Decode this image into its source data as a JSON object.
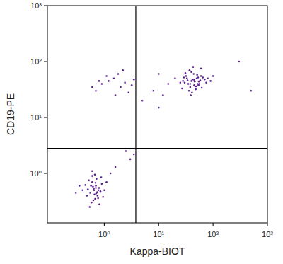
{
  "chart_data": {
    "type": "scatter",
    "x_label": "Kappa-BIOT",
    "y_label": "CD19-PE",
    "log": true,
    "color": "#5a1f8c",
    "marker": "dot",
    "xlim": [
      0.09,
      1000
    ],
    "ylim": [
      0.13,
      1000
    ],
    "xticks": [
      {
        "value": 1,
        "label": "10⁰"
      },
      {
        "value": 10,
        "label": "10¹"
      },
      {
        "value": 100,
        "label": "10²"
      },
      {
        "value": 1000,
        "label": "10³"
      }
    ],
    "yticks": [
      {
        "value": 1,
        "label": "10⁰"
      },
      {
        "value": 10,
        "label": "10¹"
      },
      {
        "value": 100,
        "label": "10²"
      },
      {
        "value": 1000,
        "label": "10³"
      }
    ],
    "quadrant_x": 3.8,
    "quadrant_y": 2.8,
    "series": [
      {
        "x": [
          0.65,
          0.7,
          0.55,
          0.8,
          0.6,
          0.75,
          0.5,
          0.68,
          0.9,
          0.62,
          0.58,
          0.72,
          0.85,
          0.45,
          0.66,
          0.78,
          0.52,
          0.95,
          0.6,
          0.7,
          0.4,
          1.1,
          0.63,
          0.74,
          0.57,
          0.81,
          0.69,
          0.48,
          0.88,
          0.64,
          0.35,
          1.3,
          0.71,
          0.6,
          0.77,
          0.54,
          1.0,
          0.67,
          0.3,
          1.6
        ],
        "values": [
          0.5,
          0.6,
          0.45,
          0.55,
          0.7,
          0.4,
          0.52,
          0.35,
          0.65,
          0.58,
          0.3,
          0.8,
          0.48,
          0.62,
          0.42,
          0.5,
          0.75,
          0.38,
          0.9,
          0.55,
          0.5,
          0.7,
          0.33,
          0.46,
          0.6,
          0.28,
          0.68,
          0.4,
          0.85,
          0.53,
          0.6,
          1.0,
          0.44,
          1.1,
          0.36,
          0.25,
          0.5,
          0.95,
          0.45,
          1.3
        ]
      },
      {
        "x": [
          40,
          35,
          50,
          45,
          30,
          60,
          38,
          42,
          55,
          33,
          48,
          70,
          28,
          44,
          36,
          52,
          65,
          40,
          25,
          47,
          58,
          32,
          80,
          41,
          37,
          54,
          46,
          62,
          29,
          43,
          90,
          39,
          51,
          34,
          56,
          20,
          75,
          49,
          31,
          45,
          100,
          27,
          60,
          38,
          53
        ],
        "values": [
          45,
          40,
          50,
          38,
          42,
          55,
          35,
          48,
          44,
          50,
          32,
          48,
          45,
          60,
          30,
          40,
          52,
          65,
          42,
          36,
          46,
          55,
          50,
          28,
          70,
          38,
          44,
          34,
          52,
          80,
          45,
          25,
          58,
          46,
          40,
          50,
          42,
          36,
          62,
          47,
          55,
          33,
          75,
          40,
          52
        ]
      },
      {
        "x": [
          0.7,
          1.2,
          2.0,
          1.5,
          0.9,
          2.8,
          1.8,
          3.2,
          1.1,
          2.4,
          0.6,
          3.5,
          1.6,
          2.2,
          0.8,
          2.5,
          3.0,
          5,
          8,
          12,
          15,
          3.5,
          10,
          500,
          300,
          10
        ],
        "values": [
          30,
          45,
          35,
          50,
          40,
          28,
          60,
          38,
          55,
          42,
          35,
          48,
          25,
          70,
          45,
          2.5,
          1.8,
          20,
          30,
          25,
          40,
          2.2,
          15,
          30,
          100,
          60
        ]
      }
    ]
  }
}
